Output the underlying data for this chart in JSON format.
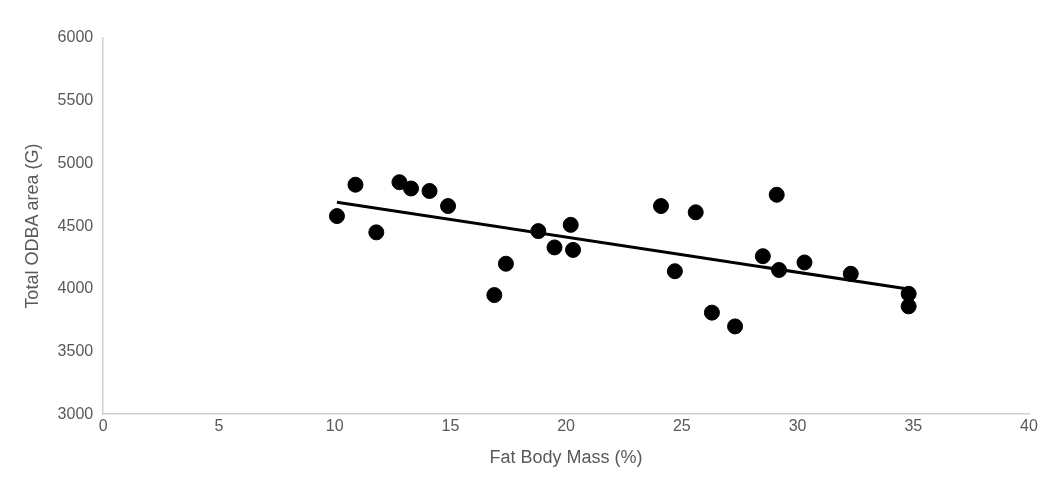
{
  "chart_data": {
    "type": "scatter",
    "xlabel": "Fat Body Mass (%)",
    "ylabel": "Total ODBA area (G)",
    "xlim": [
      0,
      40
    ],
    "xticks": [
      0,
      5,
      10,
      15,
      20,
      25,
      30,
      35,
      40
    ],
    "ylim": [
      3000,
      6000
    ],
    "yticks": [
      3000,
      3500,
      4000,
      4500,
      5000,
      5500,
      6000
    ],
    "grid": false,
    "legend": false,
    "marker": "circle",
    "series": [
      {
        "color": "#000000",
        "x": [
          10.1,
          10.9,
          11.8,
          12.8,
          13.3,
          14.1,
          14.9,
          16.9,
          17.4,
          18.8,
          19.5,
          20.2,
          20.3,
          24.1,
          24.7,
          25.6,
          26.3,
          27.3,
          28.5,
          29.1,
          29.2,
          30.3,
          32.3,
          34.8,
          34.8
        ],
        "values": [
          4580,
          4830,
          4450,
          4850,
          4800,
          4780,
          4660,
          3950,
          4200,
          4460,
          4330,
          4510,
          4310,
          4660,
          4140,
          4610,
          3810,
          3700,
          4260,
          4750,
          4150,
          4210,
          4120,
          3960,
          3860
        ]
      },
      {
        "type": "line",
        "color": "#000000",
        "marker": "none",
        "x": [
          10.1,
          34.7
        ],
        "values": [
          4690,
          4000
        ]
      }
    ]
  }
}
